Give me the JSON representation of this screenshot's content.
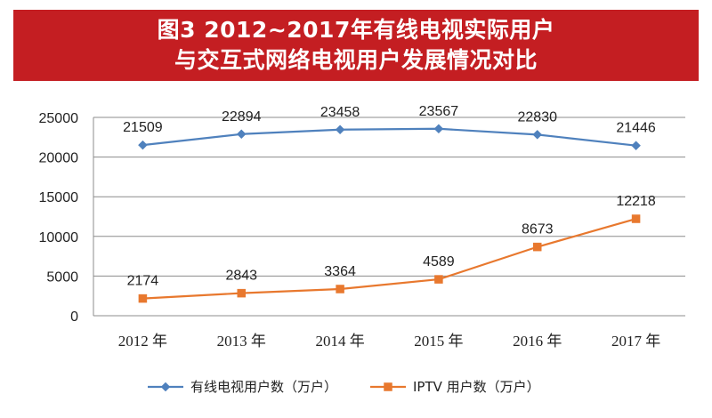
{
  "title": {
    "line1": "图3 2012~2017年有线电视实际用户",
    "line2": "与交互式网络电视用户发展情况对比",
    "background_color": "#c41e22"
  },
  "chart_data": {
    "type": "line",
    "categories": [
      "2012 年",
      "2013 年",
      "2014 年",
      "2015 年",
      "2016 年",
      "2017 年"
    ],
    "ylim": [
      0,
      25000
    ],
    "yticks": [
      "0",
      "5000",
      "10000",
      "15000",
      "20000",
      "25000"
    ],
    "grid": true,
    "legend_position": "bottom",
    "series": [
      {
        "name": "有线电视用户数（万户）",
        "color": "#4f81bd",
        "marker": "diamond",
        "values": [
          21509,
          22894,
          23458,
          23567,
          22830,
          21446
        ],
        "labels": [
          "21509",
          "22894",
          "23458",
          "23567",
          "22830",
          "21446"
        ]
      },
      {
        "name": "IPTV 用户数（万户）",
        "color": "#e8782e",
        "marker": "square",
        "values": [
          2174,
          2843,
          3364,
          4589,
          8673,
          12218
        ],
        "labels": [
          "2174",
          "2843",
          "3364",
          "4589",
          "8673",
          "12218"
        ]
      }
    ]
  }
}
